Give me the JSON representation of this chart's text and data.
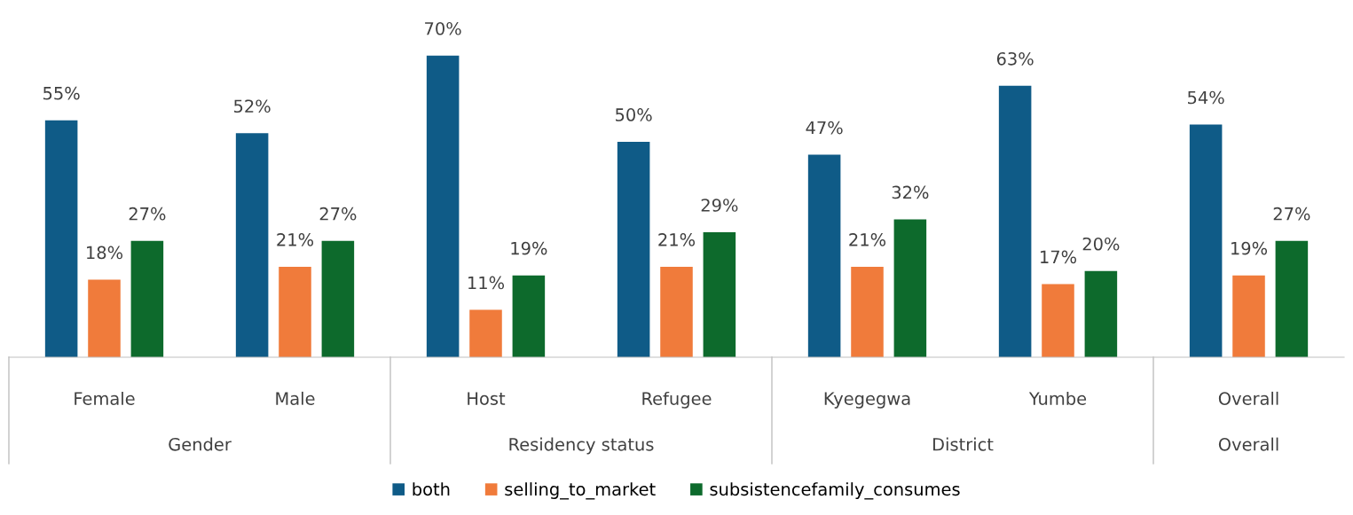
{
  "chart_data": {
    "type": "bar",
    "categories": [
      "Female",
      "Male",
      "Host",
      "Refugee",
      "Kyegegwa",
      "Yumbe",
      "Overall"
    ],
    "series": [
      {
        "name": "both",
        "color": "#0f5b87",
        "values": [
          55,
          52,
          70,
          50,
          47,
          63,
          54
        ],
        "value_labels": [
          "55%",
          "52%",
          "70%",
          "50%",
          "47%",
          "63%",
          "54%"
        ]
      },
      {
        "name": "selling_to_market",
        "color": "#f07b3b",
        "values": [
          18,
          21,
          11,
          21,
          21,
          17,
          19
        ],
        "value_labels": [
          "18%",
          "21%",
          "11%",
          "21%",
          "21%",
          "17%",
          "19%"
        ]
      },
      {
        "name": "subsistencefamily_consumes",
        "color": "#0d6a2c",
        "values": [
          27,
          27,
          19,
          29,
          32,
          20,
          27
        ],
        "value_labels": [
          "27%",
          "27%",
          "19%",
          "29%",
          "32%",
          "20%",
          "27%"
        ]
      }
    ],
    "annotations": [
      "Gender",
      "Residency status",
      "District",
      "Overall"
    ],
    "legend": "bottom",
    "grid": false
  }
}
